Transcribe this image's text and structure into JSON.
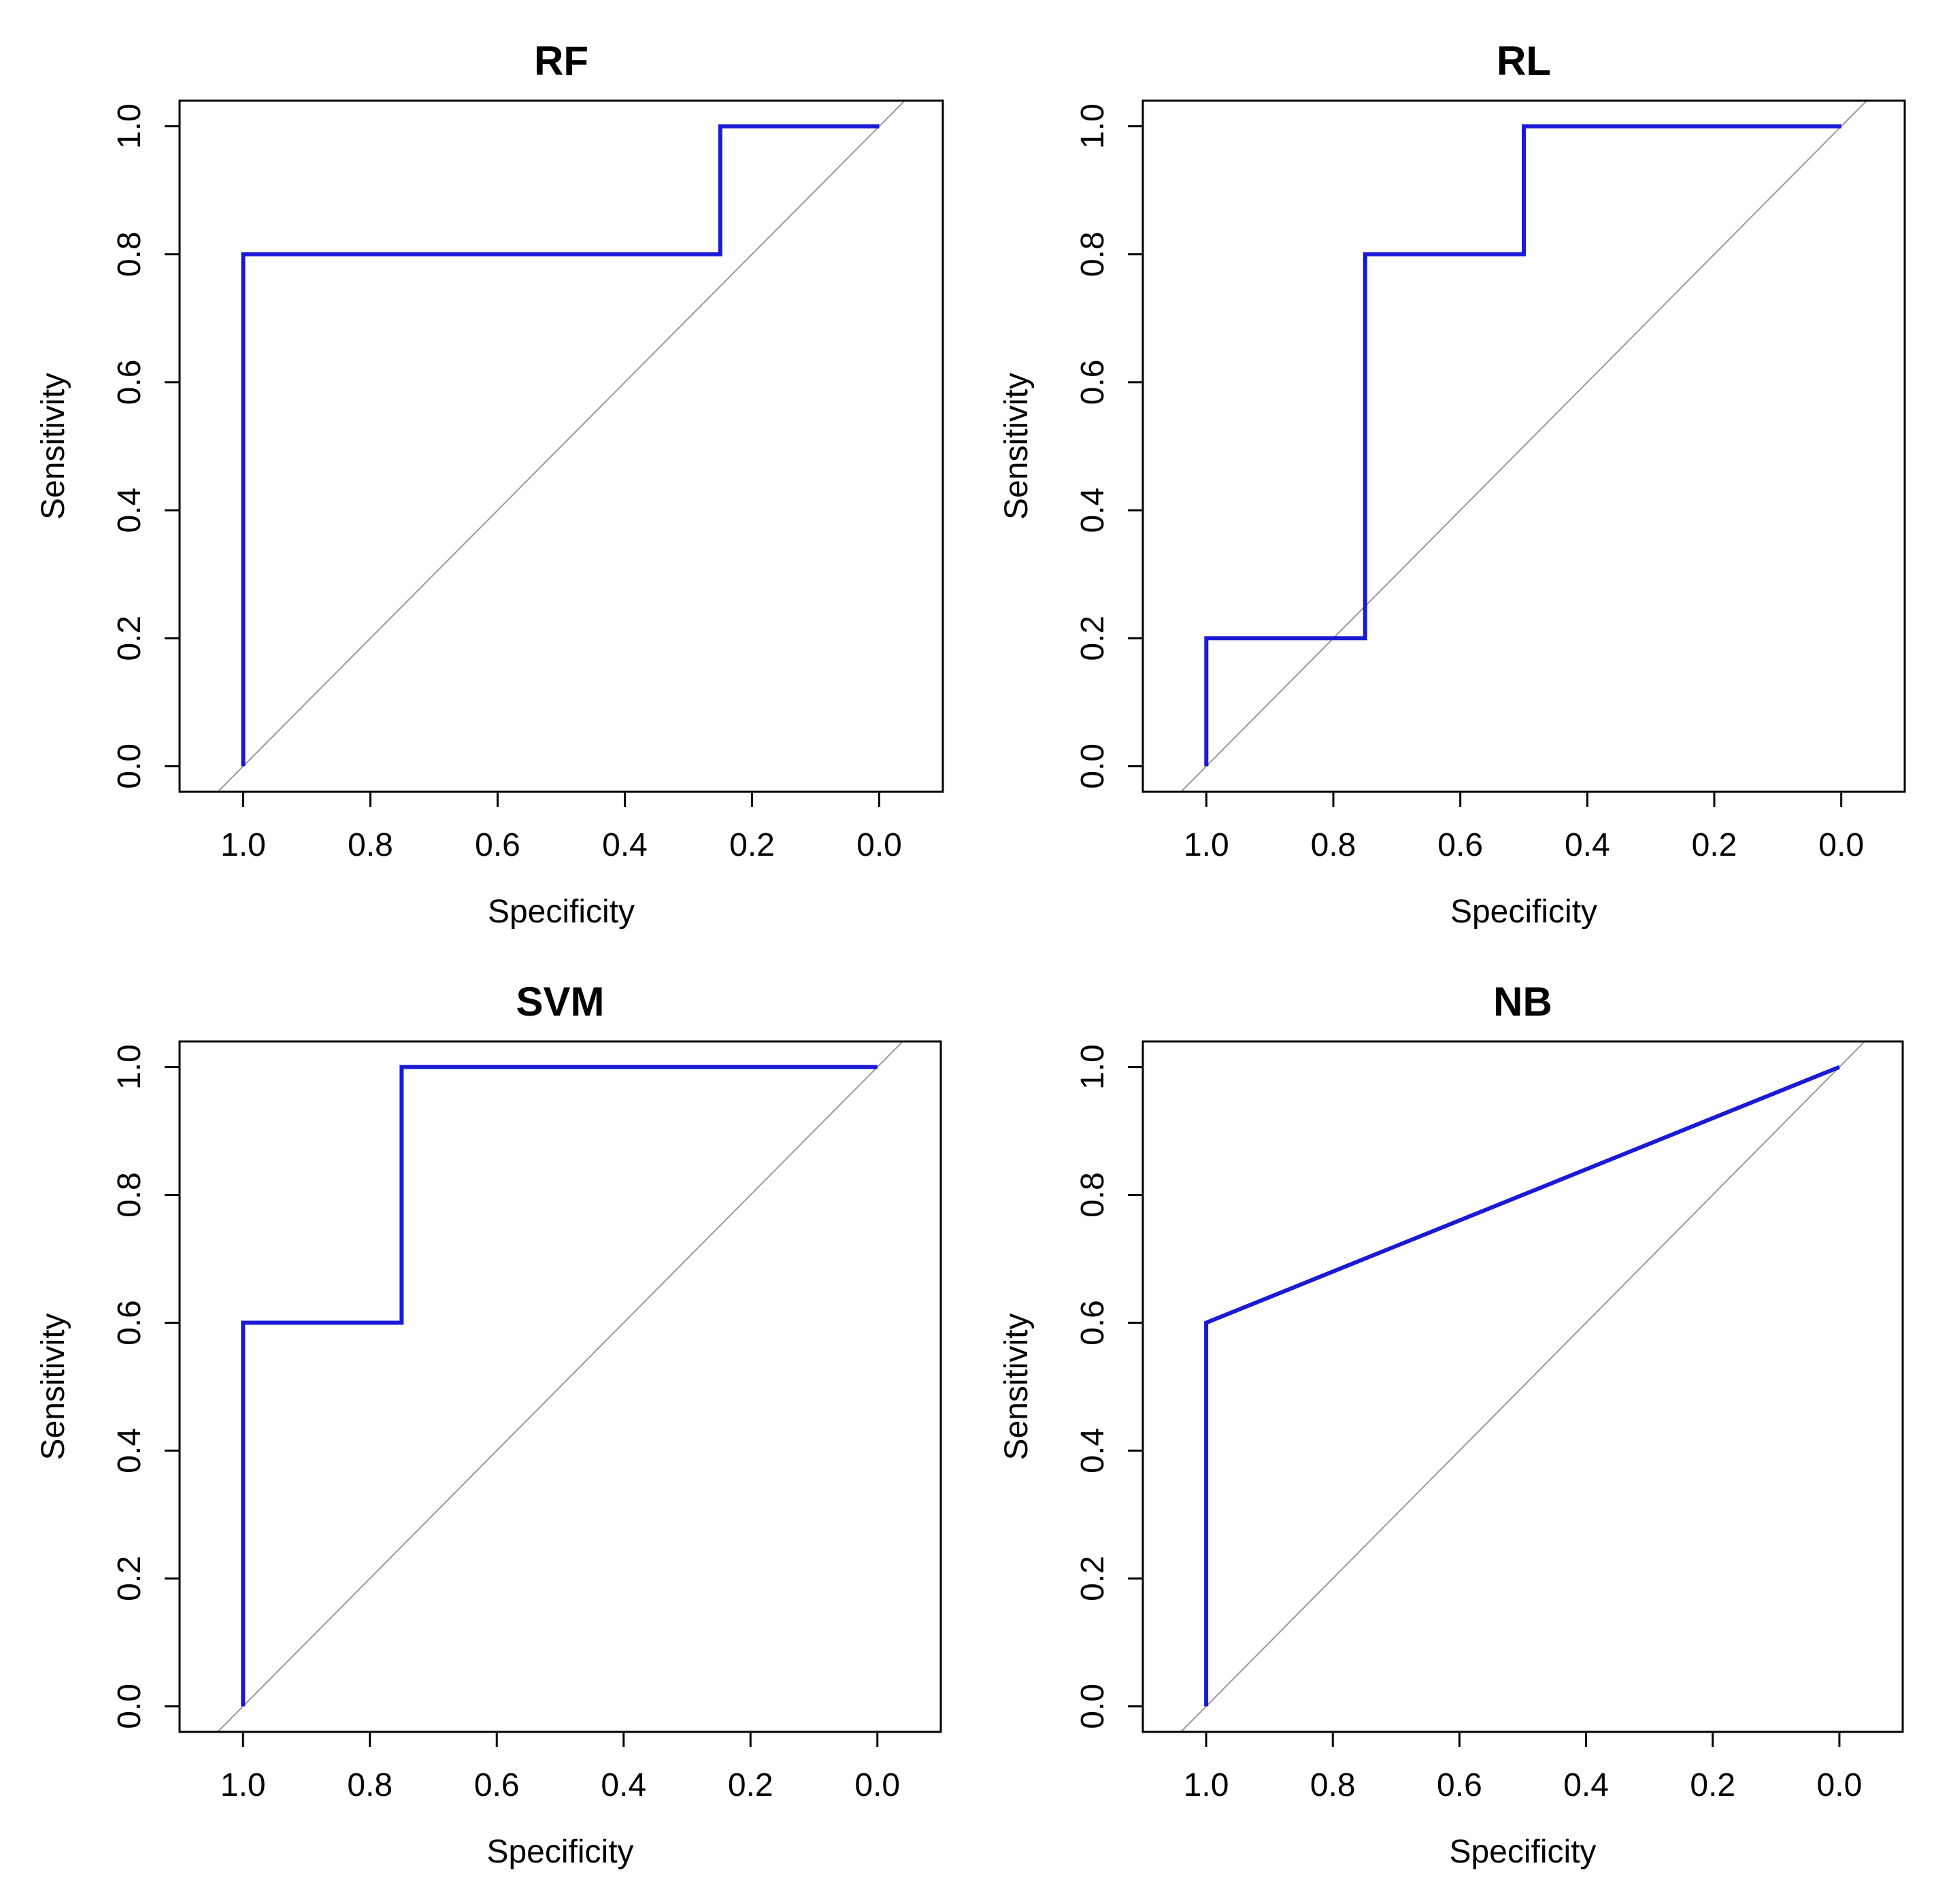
{
  "chart_data": [
    {
      "type": "line",
      "title": "RF",
      "xlabel": "Specificity",
      "ylabel": "Sensitivity",
      "x_reversed": true,
      "xlim": [
        1.1,
        -0.1
      ],
      "ylim": [
        -0.04,
        1.04
      ],
      "xticks": [
        1.0,
        0.8,
        0.6,
        0.4,
        0.2,
        0.0
      ],
      "yticks": [
        0.0,
        0.2,
        0.4,
        0.6,
        0.8,
        1.0
      ],
      "xtick_labels": [
        "1.0",
        "0.8",
        "0.6",
        "0.4",
        "0.2",
        "0.0"
      ],
      "ytick_labels": [
        "0.0",
        "0.2",
        "0.4",
        "0.6",
        "0.8",
        "1.0"
      ],
      "reference_line": "identity",
      "series": [
        {
          "color": "#1a1ad6",
          "points": [
            [
              1.0,
              0.0
            ],
            [
              1.0,
              0.8
            ],
            [
              0.25,
              0.8
            ],
            [
              0.25,
              1.0
            ],
            [
              0.0,
              1.0
            ]
          ]
        }
      ]
    },
    {
      "type": "line",
      "title": "RL",
      "xlabel": "Specificity",
      "ylabel": "Sensitivity",
      "x_reversed": true,
      "xlim": [
        1.1,
        -0.1
      ],
      "ylim": [
        -0.04,
        1.04
      ],
      "xticks": [
        1.0,
        0.8,
        0.6,
        0.4,
        0.2,
        0.0
      ],
      "yticks": [
        0.0,
        0.2,
        0.4,
        0.6,
        0.8,
        1.0
      ],
      "xtick_labels": [
        "1.0",
        "0.8",
        "0.6",
        "0.4",
        "0.2",
        "0.0"
      ],
      "ytick_labels": [
        "0.0",
        "0.2",
        "0.4",
        "0.6",
        "0.8",
        "1.0"
      ],
      "reference_line": "identity",
      "series": [
        {
          "color": "#1a1ad6",
          "points": [
            [
              1.0,
              0.0
            ],
            [
              1.0,
              0.2
            ],
            [
              0.75,
              0.2
            ],
            [
              0.75,
              0.8
            ],
            [
              0.5,
              0.8
            ],
            [
              0.5,
              1.0
            ],
            [
              0.0,
              1.0
            ]
          ]
        }
      ]
    },
    {
      "type": "line",
      "title": "SVM",
      "xlabel": "Specificity",
      "ylabel": "Sensitivity",
      "x_reversed": true,
      "xlim": [
        1.1,
        -0.1
      ],
      "ylim": [
        -0.04,
        1.04
      ],
      "xticks": [
        1.0,
        0.8,
        0.6,
        0.4,
        0.2,
        0.0
      ],
      "yticks": [
        0.0,
        0.2,
        0.4,
        0.6,
        0.8,
        1.0
      ],
      "xtick_labels": [
        "1.0",
        "0.8",
        "0.6",
        "0.4",
        "0.2",
        "0.0"
      ],
      "ytick_labels": [
        "0.0",
        "0.2",
        "0.4",
        "0.6",
        "0.8",
        "1.0"
      ],
      "reference_line": "identity",
      "series": [
        {
          "color": "#1a1ad6",
          "points": [
            [
              1.0,
              0.0
            ],
            [
              1.0,
              0.6
            ],
            [
              0.75,
              0.6
            ],
            [
              0.75,
              1.0
            ],
            [
              0.0,
              1.0
            ]
          ]
        }
      ]
    },
    {
      "type": "line",
      "title": "NB",
      "xlabel": "Specificity",
      "ylabel": "Sensitivity",
      "x_reversed": true,
      "xlim": [
        1.1,
        -0.1
      ],
      "ylim": [
        -0.04,
        1.04
      ],
      "xticks": [
        1.0,
        0.8,
        0.6,
        0.4,
        0.2,
        0.0
      ],
      "yticks": [
        0.0,
        0.2,
        0.4,
        0.6,
        0.8,
        1.0
      ],
      "xtick_labels": [
        "1.0",
        "0.8",
        "0.6",
        "0.4",
        "0.2",
        "0.0"
      ],
      "ytick_labels": [
        "0.0",
        "0.2",
        "0.4",
        "0.6",
        "0.8",
        "1.0"
      ],
      "reference_line": "identity",
      "series": [
        {
          "color": "#1a1ad6",
          "points": [
            [
              1.0,
              0.0
            ],
            [
              1.0,
              0.6
            ],
            [
              0.0,
              1.0
            ]
          ]
        }
      ]
    }
  ]
}
